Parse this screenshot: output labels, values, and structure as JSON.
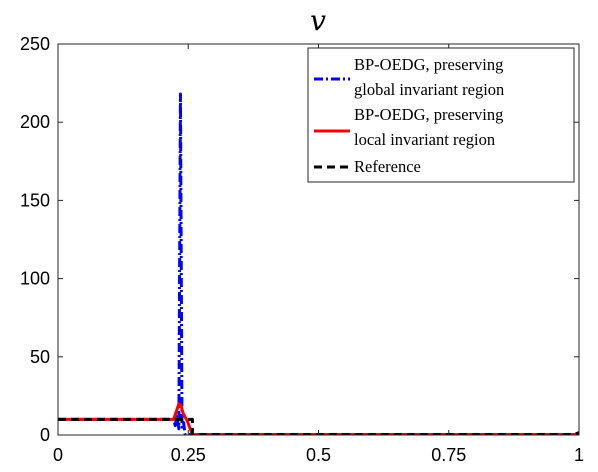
{
  "chart_data": {
    "type": "line",
    "title": "v",
    "xlabel": "",
    "ylabel": "",
    "xlim": [
      0,
      1
    ],
    "ylim": [
      0,
      250
    ],
    "xticks": [
      0,
      0.25,
      0.5,
      0.75,
      1
    ],
    "xtick_labels": [
      "0",
      "0.25",
      "0.5",
      "0.75",
      "1"
    ],
    "yticks": [
      0,
      50,
      100,
      150,
      200,
      250
    ],
    "ytick_labels": [
      "0",
      "50",
      "100",
      "150",
      "200",
      "250"
    ],
    "grid": false,
    "legend_position": "top-right",
    "series": [
      {
        "name": "BP-OEDG, preserving global invariant region",
        "color": "#0000ff",
        "style": "dashdot",
        "points": [
          [
            0,
            10
          ],
          [
            0.2,
            10
          ],
          [
            0.222,
            10
          ],
          [
            0.225,
            6
          ],
          [
            0.228,
            12
          ],
          [
            0.232,
            4
          ],
          [
            0.235,
            218
          ],
          [
            0.238,
            5
          ],
          [
            0.241,
            8
          ],
          [
            0.244,
            0.3
          ],
          [
            0.25,
            0.3
          ],
          [
            1,
            0.3
          ]
        ]
      },
      {
        "name": "BP-OEDG, preserving local invariant region",
        "color": "#ff0000",
        "style": "solid",
        "points": [
          [
            0,
            10
          ],
          [
            0.222,
            10
          ],
          [
            0.226,
            14
          ],
          [
            0.232,
            20
          ],
          [
            0.236,
            19
          ],
          [
            0.24,
            14
          ],
          [
            0.248,
            9
          ],
          [
            0.258,
            0.3
          ],
          [
            1,
            0.3
          ]
        ]
      },
      {
        "name": "Reference",
        "color": "#000000",
        "style": "dashed",
        "points": [
          [
            0,
            10
          ],
          [
            0.24,
            10
          ],
          [
            0.258,
            10
          ],
          [
            0.258,
            0.3
          ],
          [
            0.99,
            0.3
          ],
          [
            1,
            1.5
          ]
        ]
      }
    ]
  }
}
